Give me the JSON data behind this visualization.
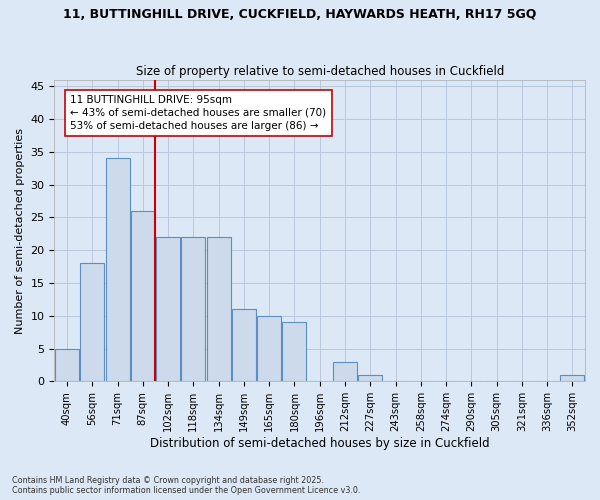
{
  "title_line1": "11, BUTTINGHILL DRIVE, CUCKFIELD, HAYWARDS HEATH, RH17 5GQ",
  "title_line2": "Size of property relative to semi-detached houses in Cuckfield",
  "xlabel": "Distribution of semi-detached houses by size in Cuckfield",
  "ylabel": "Number of semi-detached properties",
  "bar_labels": [
    "40sqm",
    "56sqm",
    "71sqm",
    "87sqm",
    "102sqm",
    "118sqm",
    "134sqm",
    "149sqm",
    "165sqm",
    "180sqm",
    "196sqm",
    "212sqm",
    "227sqm",
    "243sqm",
    "258sqm",
    "274sqm",
    "290sqm",
    "305sqm",
    "321sqm",
    "336sqm",
    "352sqm"
  ],
  "bar_values": [
    5,
    18,
    34,
    26,
    22,
    22,
    22,
    11,
    10,
    9,
    0,
    3,
    1,
    0,
    0,
    0,
    0,
    0,
    0,
    0,
    1
  ],
  "bar_color": "#cddaeb",
  "bar_edge_color": "#5b8ec4",
  "grid_color": "#b8c8dc",
  "background_color": "#dce8f5",
  "red_line_color": "#cc0000",
  "annotation_box_color": "#ffffff",
  "annotation_box_edge": "#cc0000",
  "ylim": [
    0,
    46
  ],
  "yticks": [
    0,
    5,
    10,
    15,
    20,
    25,
    30,
    35,
    40,
    45
  ],
  "footnote_line1": "Contains HM Land Registry data © Crown copyright and database right 2025.",
  "footnote_line2": "Contains public sector information licensed under the Open Government Licence v3.0."
}
